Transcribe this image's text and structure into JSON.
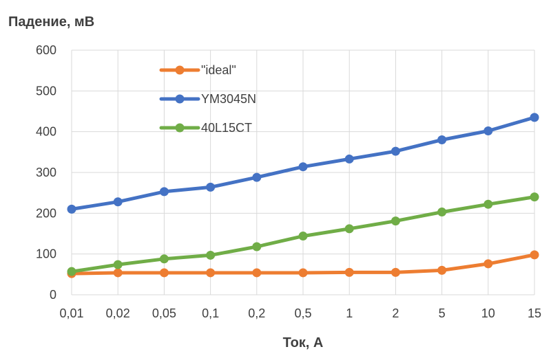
{
  "chart_data": {
    "type": "line",
    "title": "",
    "ylabel": "Падение, мВ",
    "xlabel": "Ток, А",
    "categories": [
      "0,01",
      "0,02",
      "0,05",
      "0,1",
      "0,2",
      "0,5",
      "1",
      "2",
      "5",
      "10",
      "15"
    ],
    "ylim": [
      0,
      600
    ],
    "yticks": [
      0,
      100,
      200,
      300,
      400,
      500,
      600
    ],
    "grid": true,
    "legend_position": "top-left",
    "series": [
      {
        "name": "\"ideal\"",
        "color": "#ED7D31",
        "values": [
          52,
          54,
          54,
          54,
          54,
          54,
          55,
          55,
          60,
          76,
          98
        ]
      },
      {
        "name": "YM3045N",
        "color": "#4472C4",
        "values": [
          210,
          228,
          253,
          264,
          288,
          314,
          333,
          352,
          380,
          402,
          435
        ]
      },
      {
        "name": "40L15CT",
        "color": "#70AD47",
        "values": [
          57,
          74,
          88,
          97,
          118,
          144,
          162,
          181,
          203,
          222,
          240
        ]
      }
    ]
  }
}
